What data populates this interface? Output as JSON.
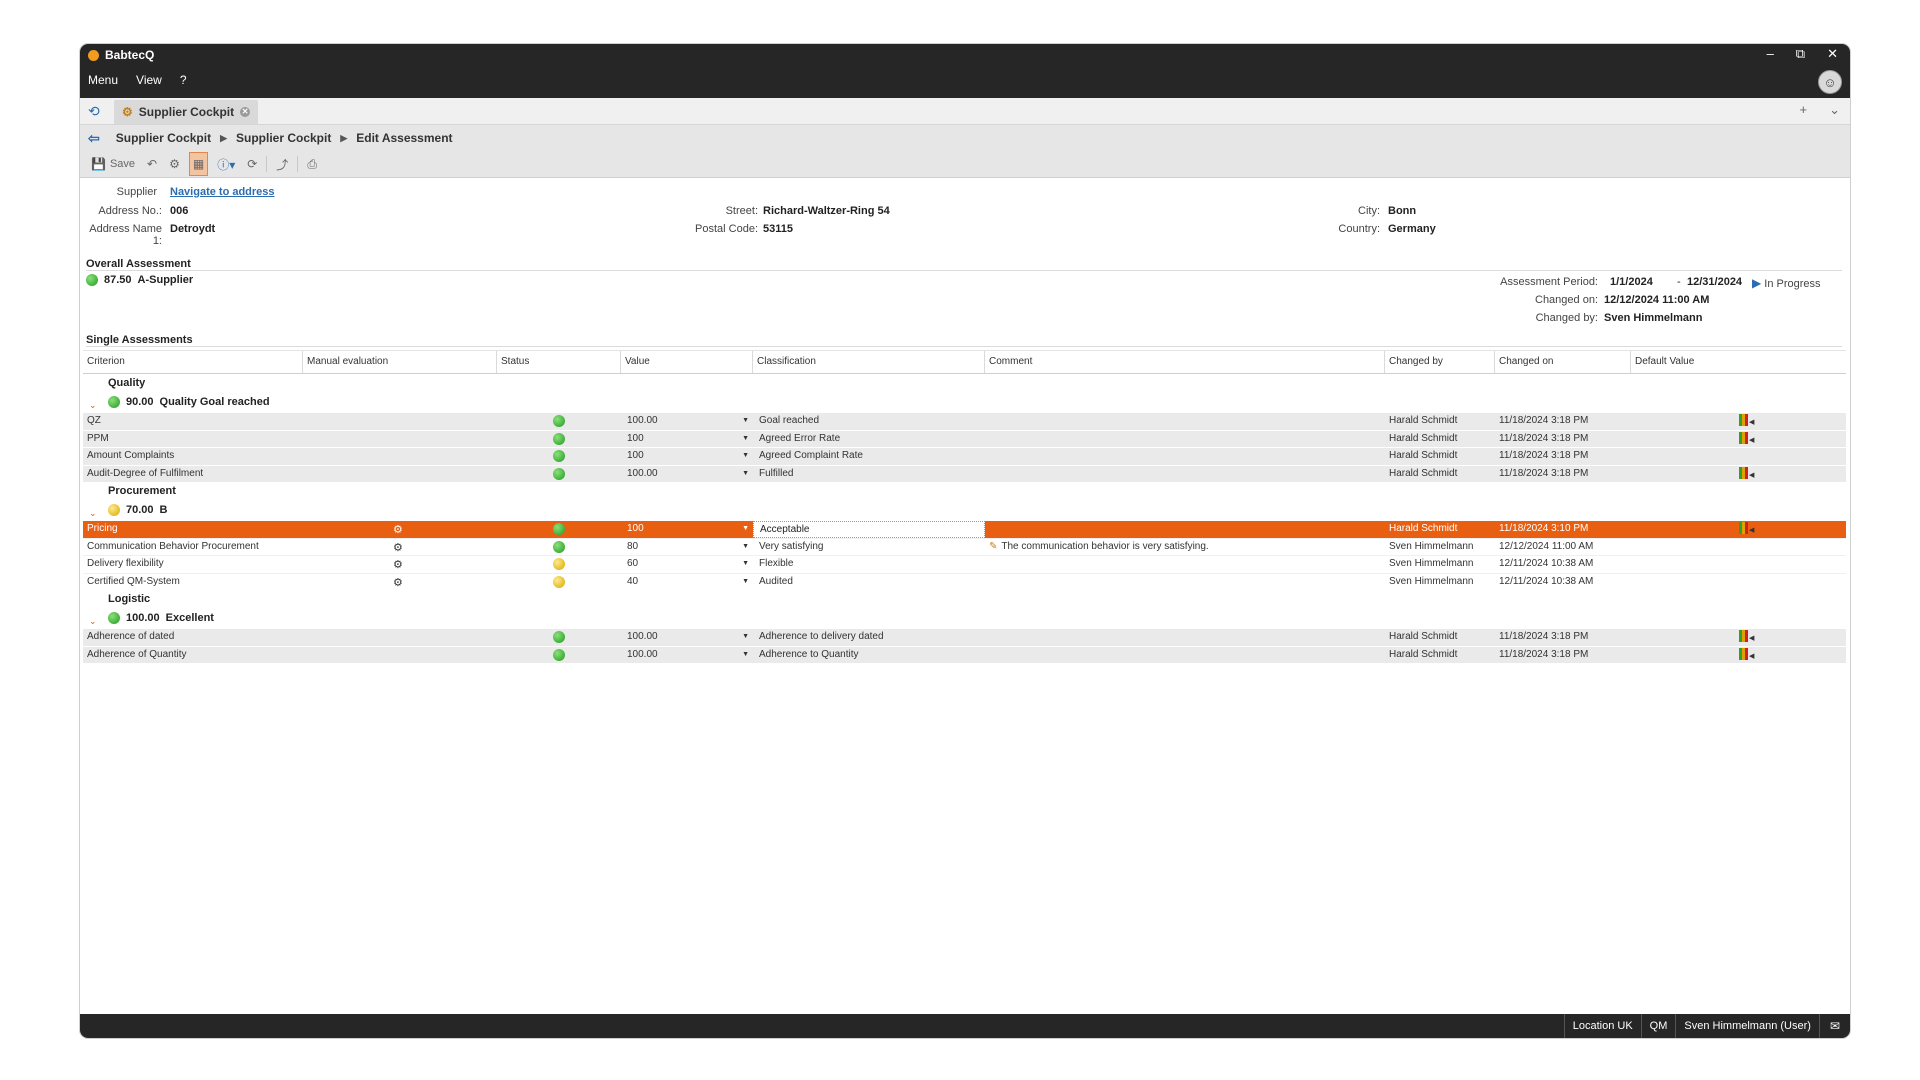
{
  "app": {
    "title": "BabtecQ"
  },
  "menu": [
    "Menu",
    "View",
    "?"
  ],
  "window_controls": {
    "minimize": "–",
    "restore": "⧉",
    "close": "✕"
  },
  "tabs": [
    {
      "label": "Supplier Cockpit"
    }
  ],
  "tab_actions": {
    "add": "+",
    "more": "⌄"
  },
  "breadcrumb": [
    "Supplier Cockpit",
    "Supplier Cockpit",
    "Edit Assessment"
  ],
  "toolbar": {
    "save_label": "Save"
  },
  "supplier": {
    "label": "Supplier",
    "navigate_link": "Navigate to address",
    "address_no_label": "Address No.:",
    "address_no": "006",
    "address_name_label": "Address Name 1:",
    "address_name": "Detroydt",
    "street_label": "Street:",
    "street": "Richard-Waltzer-Ring 54",
    "postal_label": "Postal Code:",
    "postal": "53115",
    "city_label": "City:",
    "city": "Bonn",
    "country_label": "Country:",
    "country": "Germany"
  },
  "overall": {
    "title": "Overall Assessment",
    "score": "87.50",
    "rating": "A-Supplier",
    "status_color": "green",
    "period_label": "Assessment Period:",
    "period_from": "1/1/2024",
    "period_sep": "-",
    "period_to": "12/31/2024",
    "state": "In Progress",
    "changed_on_label": "Changed on:",
    "changed_on": "12/12/2024 11:00 AM",
    "changed_by_label": "Changed by:",
    "changed_by": "Sven Himmelmann"
  },
  "single": {
    "title": "Single Assessments",
    "columns": [
      "Criterion",
      "Manual evaluation",
      "Status",
      "Value",
      "Classification",
      "Comment",
      "Changed by",
      "Changed on",
      "Default Value"
    ],
    "groups": [
      {
        "name": "Quality",
        "score": "90.00",
        "rating": "Quality Goal reached",
        "status_color": "green",
        "rows": [
          {
            "criterion": "QZ",
            "manual": false,
            "status": "green",
            "value": "100.00",
            "classification": "Goal reached",
            "comment": "",
            "changed_by": "Harald Schmidt",
            "changed_on": "11/18/2024 3:18 PM",
            "default_icon": true
          },
          {
            "criterion": "PPM",
            "manual": false,
            "status": "green",
            "value": "100",
            "classification": "Agreed Error Rate",
            "comment": "",
            "changed_by": "Harald Schmidt",
            "changed_on": "11/18/2024 3:18 PM",
            "default_icon": true
          },
          {
            "criterion": "Amount Complaints",
            "manual": false,
            "status": "green",
            "value": "100",
            "classification": "Agreed Complaint Rate",
            "comment": "",
            "changed_by": "Harald Schmidt",
            "changed_on": "11/18/2024 3:18 PM",
            "default_icon": false
          },
          {
            "criterion": "Audit-Degree of Fulfilment",
            "manual": false,
            "status": "green",
            "value": "100.00",
            "classification": "Fulfilled",
            "comment": "",
            "changed_by": "Harald Schmidt",
            "changed_on": "11/18/2024 3:18 PM",
            "default_icon": true
          }
        ]
      },
      {
        "name": "Procurement",
        "score": "70.00",
        "rating": "B",
        "status_color": "yellow",
        "rows": [
          {
            "criterion": "Pricing",
            "manual": true,
            "status": "green",
            "value": "100",
            "classification": "Acceptable",
            "comment": "",
            "changed_by": "Harald Schmidt",
            "changed_on": "11/18/2024 3:10 PM",
            "default_icon": true,
            "selected": true
          },
          {
            "criterion": "Communication Behavior Procurement",
            "manual": true,
            "status": "green",
            "value": "80",
            "classification": "Very satisfying",
            "comment": "The communication behavior is very satisfying.",
            "changed_by": "Sven Himmelmann",
            "changed_on": "12/12/2024 11:00 AM",
            "default_icon": false
          },
          {
            "criterion": "Delivery flexibility",
            "manual": true,
            "status": "yellow",
            "value": "60",
            "classification": "Flexible",
            "comment": "",
            "changed_by": "Sven Himmelmann",
            "changed_on": "12/11/2024 10:38 AM",
            "default_icon": false
          },
          {
            "criterion": "Certified QM-System",
            "manual": true,
            "status": "yellow",
            "value": "40",
            "classification": "Audited",
            "comment": "",
            "changed_by": "Sven Himmelmann",
            "changed_on": "12/11/2024 10:38 AM",
            "default_icon": false
          }
        ]
      },
      {
        "name": "Logistic",
        "score": "100.00",
        "rating": "Excellent",
        "status_color": "green",
        "rows": [
          {
            "criterion": "Adherence of dated",
            "manual": false,
            "status": "green",
            "value": "100.00",
            "classification": "Adherence to delivery dated",
            "comment": "",
            "changed_by": "Harald Schmidt",
            "changed_on": "11/18/2024 3:18 PM",
            "default_icon": true
          },
          {
            "criterion": "Adherence of Quantity",
            "manual": false,
            "status": "green",
            "value": "100.00",
            "classification": "Adherence to Quantity",
            "comment": "",
            "changed_by": "Harald Schmidt",
            "changed_on": "11/18/2024 3:18 PM",
            "default_icon": true
          }
        ]
      }
    ]
  },
  "statusbar": {
    "location": "Location UK",
    "module": "QM",
    "user": "Sven Himmelmann (User)"
  },
  "colors": {
    "accent": "#e85f12",
    "titlebar": "#262626",
    "link": "#2b6cb0",
    "green": "#1f9a1f",
    "yellow": "#d7a800"
  }
}
